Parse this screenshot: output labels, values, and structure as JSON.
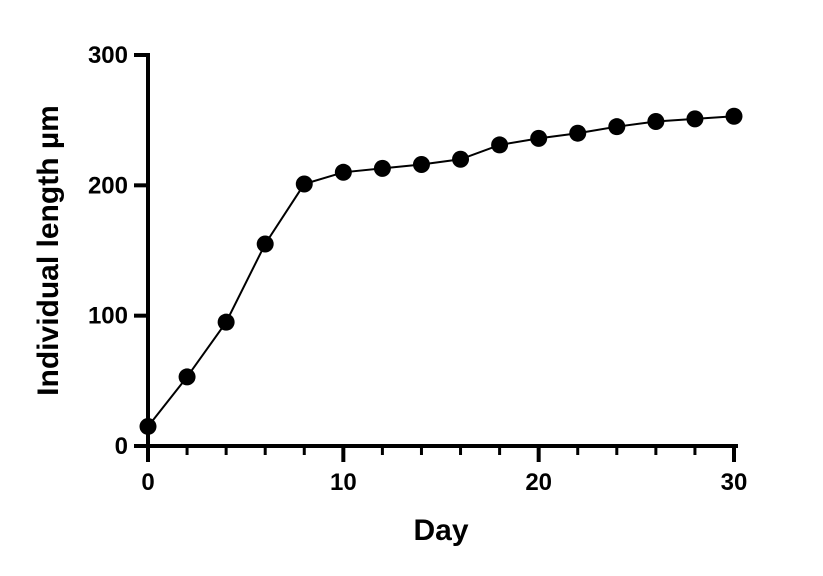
{
  "chart_data": {
    "type": "line",
    "xlabel": "Day",
    "ylabel": "Individual length µm",
    "xlim": [
      0,
      30
    ],
    "ylim": [
      0,
      300
    ],
    "x_ticks": [
      "0",
      "10",
      "20",
      "30"
    ],
    "y_ticks": [
      "0",
      "100",
      "200",
      "300"
    ],
    "x_minor_step": 2,
    "grid": false,
    "series": [
      {
        "x": [
          0,
          2,
          4,
          6,
          8,
          10,
          12,
          14,
          16,
          18,
          20,
          22,
          24,
          26,
          28,
          30
        ],
        "values": [
          15,
          53,
          95,
          155,
          201,
          210,
          213,
          216,
          220,
          231,
          236,
          240,
          245,
          249,
          251,
          253
        ],
        "color": "#000000",
        "marker": "circle"
      }
    ]
  }
}
